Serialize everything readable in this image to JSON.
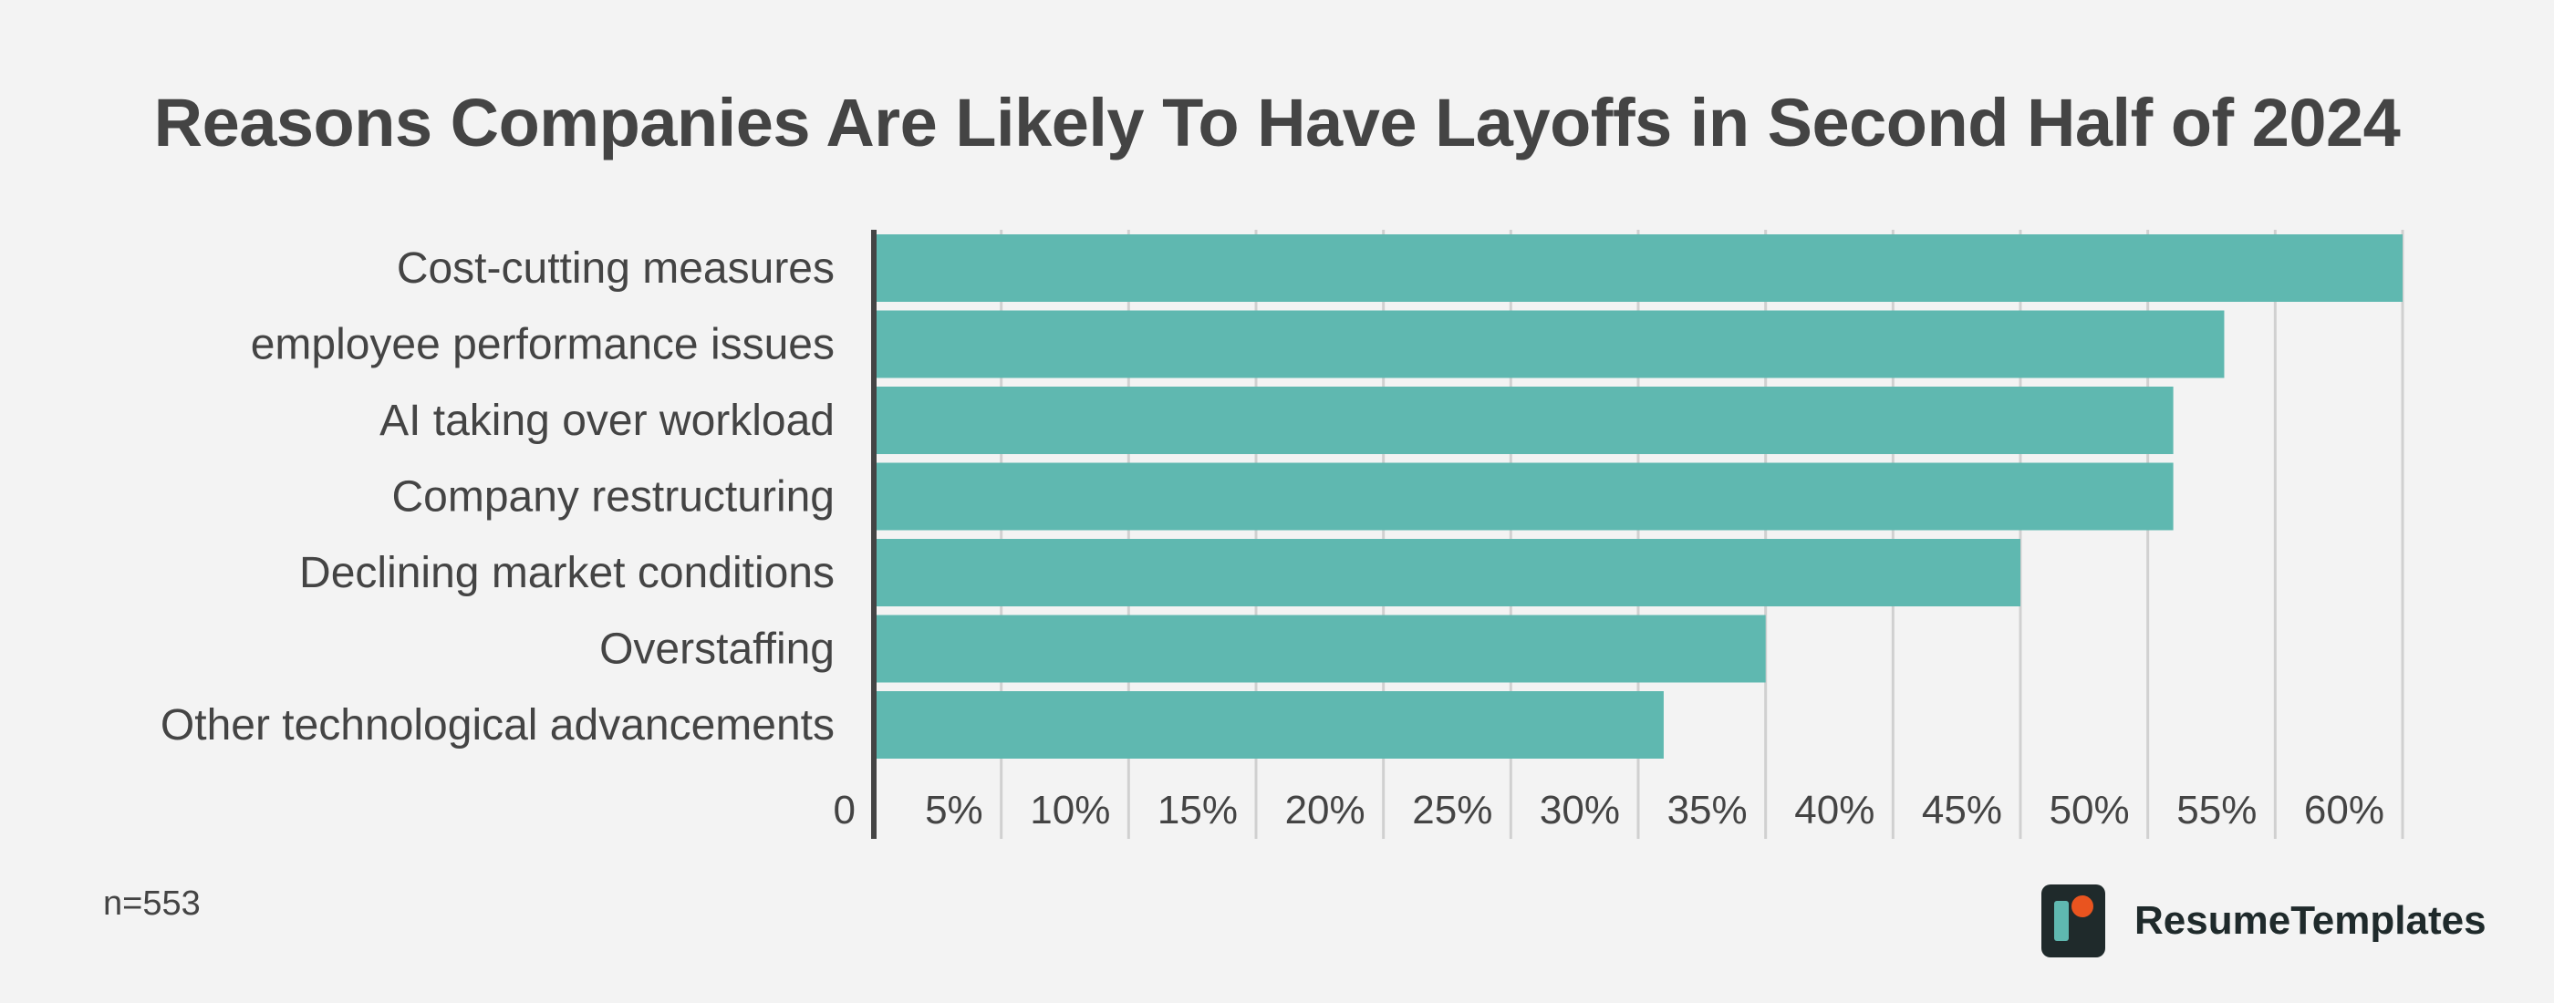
{
  "chart_data": {
    "type": "bar",
    "orientation": "horizontal",
    "title": "Reasons Companies Are Likely To Have Layoffs in Second Half of 2024",
    "categories": [
      "Cost-cutting measures",
      "employee performance issues",
      "AI taking over workload",
      "Company restructuring",
      "Declining market conditions",
      "Overstaffing",
      "Other technological advancements"
    ],
    "values": [
      60,
      53,
      51,
      51,
      45,
      35,
      31
    ],
    "xlim": [
      0,
      60
    ],
    "tick_values": [
      0,
      5,
      10,
      15,
      20,
      25,
      30,
      35,
      40,
      45,
      50,
      55,
      60
    ],
    "tick_labels": [
      "0",
      "5%",
      "10%",
      "15%",
      "20%",
      "25%",
      "30%",
      "35%",
      "40%",
      "45%",
      "50%",
      "55%",
      "60%"
    ],
    "grid": true,
    "bar_color": "#5fb8b0",
    "grid_color": "#d0d0d0",
    "axis_color": "#444444"
  },
  "footnote": "n=553",
  "brand": {
    "name": "ResumeTemplates",
    "logo_icon": "resume-templates-logo-icon"
  }
}
